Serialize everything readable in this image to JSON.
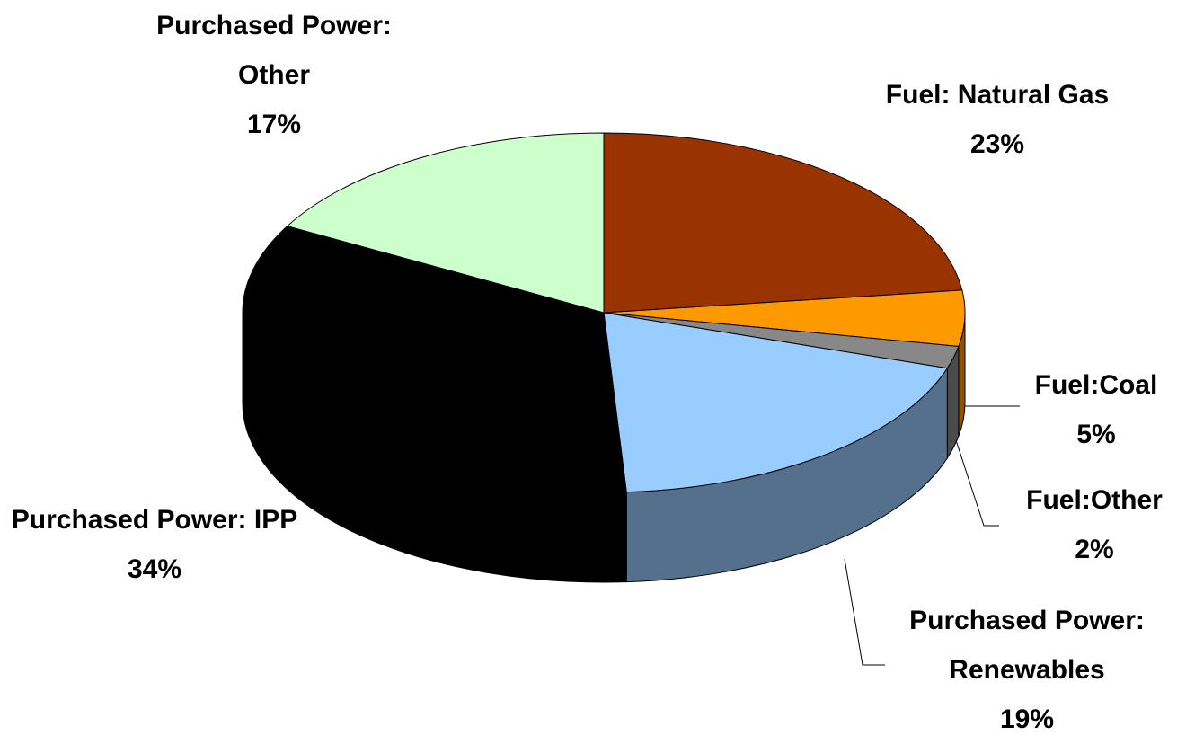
{
  "chart_data": {
    "type": "pie3d",
    "categories": [
      "Fuel: Natural Gas",
      "Fuel:Coal",
      "Fuel:Other",
      "Purchased Power: Renewables",
      "Purchased Power: IPP",
      "Purchased Power: Other"
    ],
    "values": [
      23,
      5,
      2,
      19,
      34,
      17
    ],
    "value_labels": [
      "23%",
      "5%",
      "2%",
      "19%",
      "34%",
      "17%"
    ],
    "colors": [
      "#993300",
      "#ff9900",
      "#888888",
      "#99ccff",
      "#000000",
      "#ccffcc"
    ]
  }
}
